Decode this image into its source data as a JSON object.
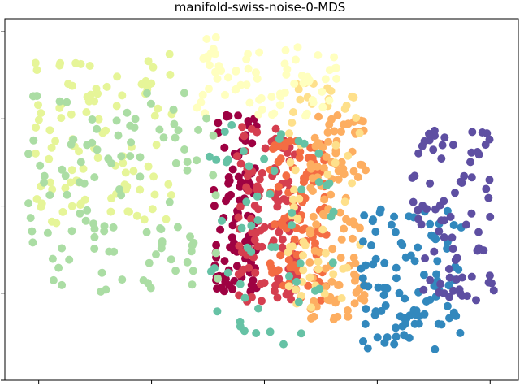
{
  "chart_data": {
    "type": "scatter",
    "title": "manifold-swiss-noise-0-MDS",
    "xlabel": "",
    "ylabel": "",
    "grid": false,
    "legend": "none",
    "tick_labels_visible": false,
    "colormap": "Spectral",
    "palette": {
      "dark_red": "#9e0142",
      "red": "#d53e4f",
      "orange_red": "#f46d43",
      "orange": "#fdae61",
      "light_orange": "#fee08b",
      "light_yellow": "#ffffbf",
      "yellow_green": "#e6f598",
      "light_green": "#abdda4",
      "teal": "#66c2a5",
      "blue": "#3288bd",
      "purple": "#5e4fa2"
    },
    "clusters": [
      {
        "name": "",
        "color": "#9e0142",
        "x": [
          -0.45,
          -0.05
        ],
        "y": [
          -1.0,
          1.05
        ],
        "n": 95
      },
      {
        "name": "",
        "color": "#d53e4f",
        "x": [
          -0.25,
          0.3
        ],
        "y": [
          -1.1,
          0.95
        ],
        "n": 110
      },
      {
        "name": "",
        "color": "#f46d43",
        "x": [
          0.05,
          0.55
        ],
        "y": [
          -1.1,
          0.85
        ],
        "n": 100
      },
      {
        "name": "",
        "color": "#fdae61",
        "x": [
          0.4,
          0.9
        ],
        "y": [
          -1.35,
          1.05
        ],
        "n": 110
      },
      {
        "name": "",
        "color": "#fee08b",
        "x": [
          0.2,
          0.85
        ],
        "y": [
          -1.3,
          1.5
        ],
        "n": 60
      },
      {
        "name": "",
        "color": "#ffffbf",
        "x": [
          -0.6,
          0.65
        ],
        "y": [
          1.0,
          1.95
        ],
        "n": 70
      },
      {
        "name": "",
        "color": "#e6f598",
        "x": [
          -2.05,
          -0.8
        ],
        "y": [
          -0.2,
          1.75
        ],
        "n": 100
      },
      {
        "name": "",
        "color": "#abdda4",
        "x": [
          -2.1,
          -0.4
        ],
        "y": [
          -1.0,
          1.3
        ],
        "n": 110
      },
      {
        "name": "",
        "color": "#66c2a5",
        "x": [
          -0.55,
          0.7
        ],
        "y": [
          -1.65,
          1.0
        ],
        "n": 55
      },
      {
        "name": "",
        "color": "#3288bd",
        "x": [
          0.85,
          1.75
        ],
        "y": [
          -1.65,
          0.0
        ],
        "n": 100
      },
      {
        "name": "",
        "color": "#5e4fa2",
        "x": [
          1.3,
          2.05
        ],
        "y": [
          -1.1,
          0.9
        ],
        "n": 80
      }
    ],
    "xlim": [
      -2.3,
      2.25
    ],
    "ylim": [
      -2.0,
      2.15
    ],
    "xticks": [
      -2.0,
      -1.0,
      0.0,
      1.0,
      2.0
    ],
    "yticks": [
      -2.0,
      -1.0,
      0.0,
      1.0,
      2.0
    ]
  }
}
